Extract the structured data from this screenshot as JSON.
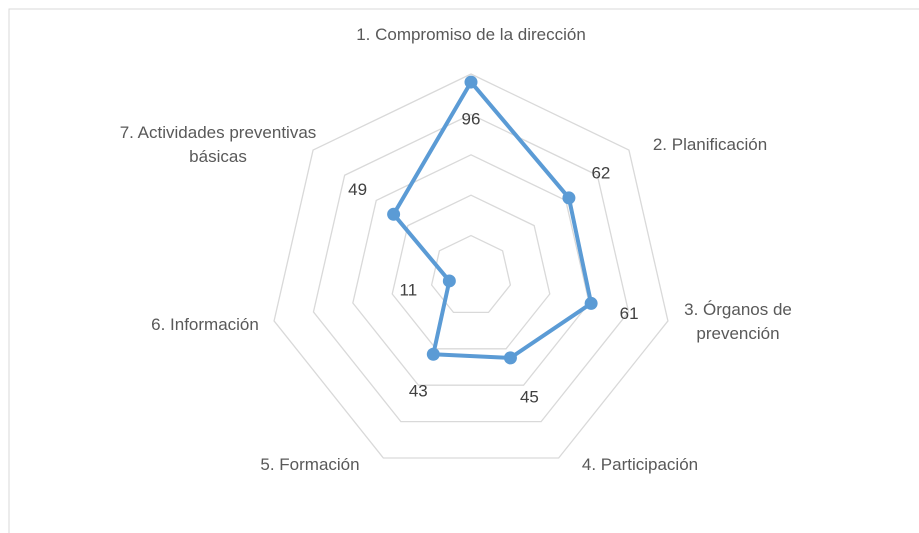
{
  "chart_data": {
    "type": "radar",
    "categories": [
      "1. Compromiso de la dirección",
      "2. Planificación",
      "3. Órganos de prevención",
      "4. Participación",
      "5. Formación",
      "6. Información",
      "7. Actividades preventivas básicas"
    ],
    "series": [
      {
        "color": "#5b9bd5",
        "values": [
          96,
          62,
          61,
          45,
          43,
          11,
          49
        ]
      }
    ],
    "ylim": [
      0,
      100
    ],
    "yticks": [
      0,
      20,
      40,
      60,
      80,
      100
    ],
    "grid": true
  }
}
